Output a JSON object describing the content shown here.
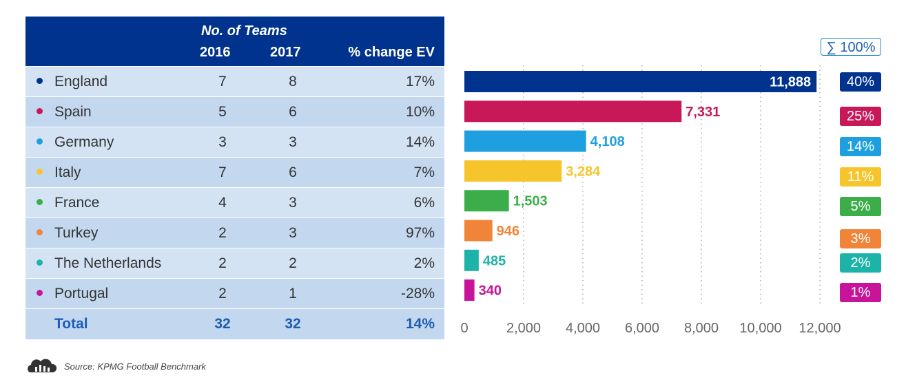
{
  "table": {
    "header": {
      "teams_label": "No. of Teams",
      "col_2016": "2016",
      "col_2017": "2017",
      "col_ev": "% change EV"
    },
    "rows": [
      {
        "country": "England",
        "t2016": "7",
        "t2017": "8",
        "ev": "17%",
        "color": "#00338d"
      },
      {
        "country": "Spain",
        "t2016": "5",
        "t2017": "6",
        "ev": "10%",
        "color": "#c8185a"
      },
      {
        "country": "Germany",
        "t2016": "3",
        "t2017": "3",
        "ev": "14%",
        "color": "#1ea0e0"
      },
      {
        "country": "Italy",
        "t2016": "7",
        "t2017": "6",
        "ev": "7%",
        "color": "#f6c52b"
      },
      {
        "country": "France",
        "t2016": "4",
        "t2017": "3",
        "ev": "6%",
        "color": "#3cae49"
      },
      {
        "country": "Turkey",
        "t2016": "2",
        "t2017": "3",
        "ev": "97%",
        "color": "#f0853a"
      },
      {
        "country": "The Netherlands",
        "t2016": "2",
        "t2017": "2",
        "ev": "2%",
        "color": "#1db3a8"
      },
      {
        "country": "Portugal",
        "t2016": "2",
        "t2017": "1",
        "ev": "-28%",
        "color": "#c8149a"
      }
    ],
    "total": {
      "label": "Total",
      "t2016": "32",
      "t2017": "32",
      "ev": "14%"
    }
  },
  "chart_data": {
    "type": "bar",
    "orientation": "horizontal",
    "categories": [
      "England",
      "Spain",
      "Germany",
      "Italy",
      "France",
      "Turkey",
      "The Netherlands",
      "Portugal"
    ],
    "values": [
      11888,
      7331,
      4108,
      3284,
      1503,
      946,
      485,
      340
    ],
    "value_labels": [
      "11,888",
      "7,331",
      "4,108",
      "3,284",
      "1,503",
      "946",
      "485",
      "340"
    ],
    "shares": [
      "40%",
      "25%",
      "14%",
      "11%",
      "5%",
      "3%",
      "2%",
      "1%"
    ],
    "colors": [
      "#00338d",
      "#c8185a",
      "#1ea0e0",
      "#f6c52b",
      "#3cae49",
      "#f0853a",
      "#1db3a8",
      "#c8149a"
    ],
    "xlim": [
      0,
      12000
    ],
    "xticks": [
      0,
      2000,
      4000,
      6000,
      8000,
      10000,
      12000
    ],
    "xtick_labels": [
      "0",
      "2,000",
      "4,000",
      "6,000",
      "8,000",
      "10,000",
      "12,000"
    ],
    "grid": true,
    "sum_label": "∑ 100%"
  },
  "source": {
    "text": "Source: KPMG Football Benchmark",
    "icon": "cloud-bar-icon"
  }
}
